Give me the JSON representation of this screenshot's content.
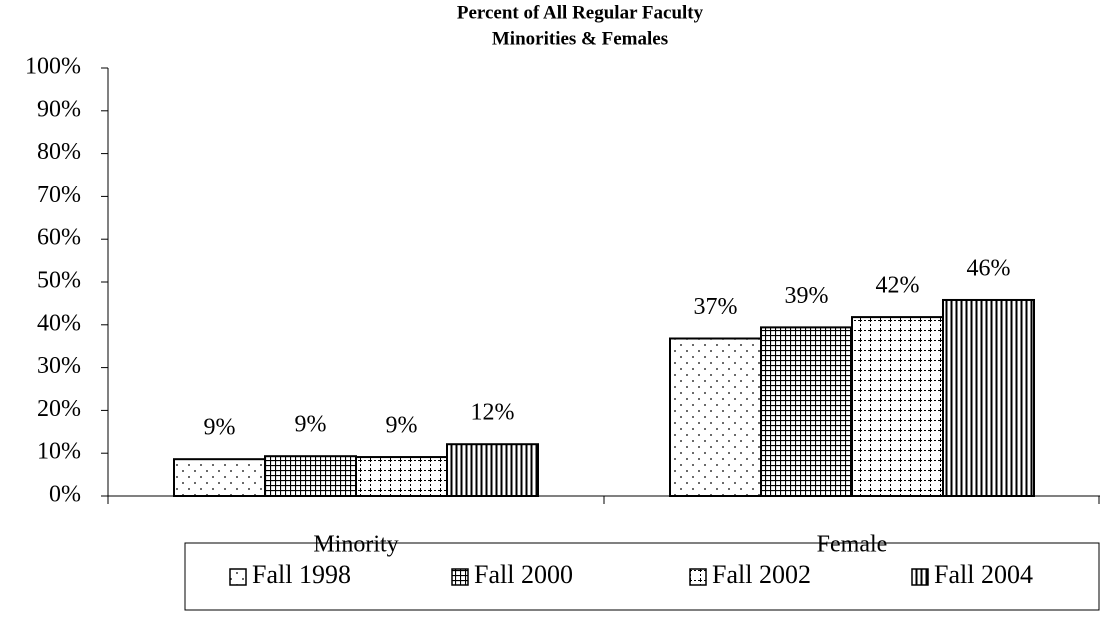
{
  "chart_data": {
    "type": "bar",
    "title": "Percent of All Regular Faculty",
    "subtitle": "Minorities & Females",
    "categories": [
      "Minority",
      "Female"
    ],
    "series": [
      {
        "name": "Fall 1998",
        "color": "#000000",
        "pattern": "dots",
        "values": [
          8.6,
          36.8
        ],
        "value_labels": [
          "9%",
          "37%"
        ]
      },
      {
        "name": "Fall 2000",
        "color": "#000000",
        "pattern": "grid",
        "values": [
          9.3,
          39.4
        ],
        "value_labels": [
          "9%",
          "39%"
        ]
      },
      {
        "name": "Fall 2002",
        "color": "#000000",
        "pattern": "dashgrid",
        "values": [
          9.1,
          41.8
        ],
        "value_labels": [
          "9%",
          "42%"
        ]
      },
      {
        "name": "Fall 2004",
        "color": "#000000",
        "pattern": "vlines",
        "values": [
          12.1,
          45.8
        ],
        "value_labels": [
          "12%",
          "46%"
        ]
      }
    ],
    "ylim": [
      0,
      100
    ],
    "yticks": [
      {
        "value": 0,
        "label": "0%"
      },
      {
        "value": 10,
        "label": "10%"
      },
      {
        "value": 20,
        "label": "20%"
      },
      {
        "value": 30,
        "label": "30%"
      },
      {
        "value": 40,
        "label": "40%"
      },
      {
        "value": 50,
        "label": "50%"
      },
      {
        "value": 60,
        "label": "60%"
      },
      {
        "value": 70,
        "label": "70%"
      },
      {
        "value": 80,
        "label": "80%"
      },
      {
        "value": 90,
        "label": "90%"
      },
      {
        "value": 100,
        "label": "100%"
      }
    ],
    "grid": false,
    "legend": "bottom"
  }
}
